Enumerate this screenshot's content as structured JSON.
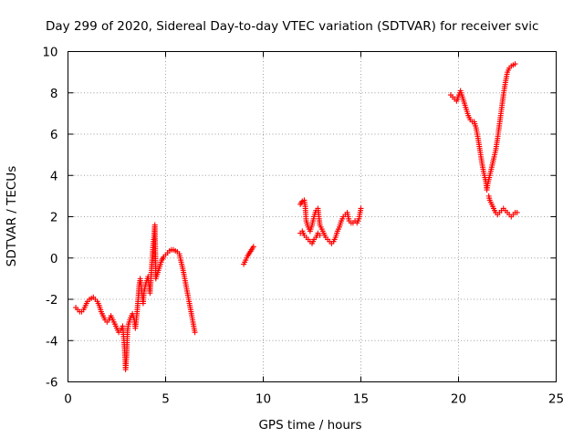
{
  "chart_data": {
    "type": "scatter",
    "title": "Day 299 of 2020, Sidereal Day-to-day VTEC variation (SDTVAR) for receiver svic",
    "xlabel": "GPS time / hours",
    "ylabel": "SDTVAR / TECUs",
    "xlim": [
      0,
      25
    ],
    "ylim": [
      -6,
      10
    ],
    "xticks": [
      0,
      5,
      10,
      15,
      20,
      25
    ],
    "yticks": [
      -6,
      -4,
      -2,
      0,
      2,
      4,
      6,
      8,
      10
    ],
    "grid": true,
    "marker": "plus",
    "color": "#ff0000",
    "segments": [
      [
        [
          0.4,
          -2.4
        ],
        [
          0.5,
          -2.5
        ],
        [
          0.6,
          -2.6
        ],
        [
          0.7,
          -2.6
        ],
        [
          0.8,
          -2.5
        ],
        [
          0.9,
          -2.3
        ],
        [
          1.0,
          -2.1
        ],
        [
          1.1,
          -2.0
        ],
        [
          1.2,
          -1.95
        ],
        [
          1.3,
          -1.9
        ],
        [
          1.4,
          -2.0
        ],
        [
          1.5,
          -2.1
        ],
        [
          1.6,
          -2.3
        ],
        [
          1.7,
          -2.6
        ],
        [
          1.8,
          -2.8
        ],
        [
          1.9,
          -3.0
        ],
        [
          2.0,
          -3.1
        ],
        [
          2.1,
          -3.0
        ],
        [
          2.2,
          -2.8
        ],
        [
          2.3,
          -3.0
        ],
        [
          2.4,
          -3.2
        ],
        [
          2.5,
          -3.4
        ],
        [
          2.6,
          -3.6
        ],
        [
          2.7,
          -3.5
        ],
        [
          2.8,
          -3.3
        ],
        [
          2.85,
          -3.8
        ],
        [
          2.9,
          -4.4
        ],
        [
          2.93,
          -5.0
        ],
        [
          2.95,
          -5.4
        ],
        [
          3.0,
          -4.8
        ],
        [
          3.05,
          -3.5
        ],
        [
          3.1,
          -3.2
        ],
        [
          3.2,
          -2.9
        ],
        [
          3.3,
          -2.7
        ],
        [
          3.4,
          -3.0
        ],
        [
          3.45,
          -3.4
        ],
        [
          3.5,
          -3.0
        ],
        [
          3.55,
          -2.5
        ],
        [
          3.6,
          -1.9
        ],
        [
          3.65,
          -1.3
        ],
        [
          3.7,
          -1.0
        ],
        [
          3.75,
          -1.4
        ],
        [
          3.8,
          -1.8
        ],
        [
          3.85,
          -2.2
        ],
        [
          3.9,
          -1.6
        ],
        [
          4.0,
          -1.2
        ],
        [
          4.1,
          -0.9
        ],
        [
          4.15,
          -1.3
        ],
        [
          4.2,
          -1.7
        ],
        [
          4.25,
          -1.0
        ],
        [
          4.3,
          -0.2
        ],
        [
          4.35,
          0.5
        ],
        [
          4.4,
          1.0
        ],
        [
          4.45,
          1.6
        ],
        [
          4.5,
          -1.0
        ],
        [
          4.6,
          -0.7
        ],
        [
          4.7,
          -0.4
        ],
        [
          4.8,
          -0.1
        ],
        [
          4.9,
          0.05
        ],
        [
          5.0,
          0.15
        ],
        [
          5.1,
          0.25
        ],
        [
          5.2,
          0.35
        ],
        [
          5.3,
          0.4
        ],
        [
          5.4,
          0.4
        ],
        [
          5.5,
          0.35
        ],
        [
          5.6,
          0.3
        ],
        [
          5.7,
          0.2
        ],
        [
          5.8,
          -0.2
        ],
        [
          5.9,
          -0.6
        ],
        [
          6.0,
          -1.1
        ],
        [
          6.1,
          -1.6
        ],
        [
          6.2,
          -2.1
        ],
        [
          6.3,
          -2.6
        ],
        [
          6.4,
          -3.1
        ],
        [
          6.5,
          -3.6
        ]
      ],
      [
        [
          9.0,
          -0.3
        ],
        [
          9.1,
          -0.1
        ],
        [
          9.2,
          0.1
        ],
        [
          9.3,
          0.25
        ],
        [
          9.4,
          0.4
        ],
        [
          9.5,
          0.55
        ]
      ],
      [
        [
          11.9,
          2.6
        ],
        [
          12.0,
          2.75
        ],
        [
          12.1,
          2.8
        ],
        [
          12.15,
          2.5
        ],
        [
          12.2,
          1.8
        ],
        [
          12.3,
          1.5
        ],
        [
          12.4,
          1.3
        ],
        [
          12.5,
          1.6
        ],
        [
          12.6,
          2.0
        ],
        [
          12.7,
          2.3
        ],
        [
          12.8,
          2.4
        ],
        [
          12.9,
          1.6
        ],
        [
          13.0,
          1.4
        ],
        [
          13.1,
          1.2
        ],
        [
          13.2,
          1.0
        ],
        [
          13.3,
          0.9
        ],
        [
          13.4,
          0.8
        ],
        [
          13.5,
          0.7
        ],
        [
          13.6,
          0.8
        ],
        [
          13.7,
          1.0
        ],
        [
          13.8,
          1.3
        ],
        [
          13.9,
          1.5
        ],
        [
          14.0,
          1.8
        ],
        [
          14.1,
          2.0
        ],
        [
          14.2,
          2.1
        ],
        [
          14.3,
          2.2
        ],
        [
          14.4,
          1.8
        ],
        [
          14.5,
          1.7
        ],
        [
          14.6,
          1.7
        ],
        [
          14.7,
          1.8
        ],
        [
          14.8,
          1.7
        ],
        [
          14.9,
          1.9
        ],
        [
          15.0,
          2.4
        ],
        [
          11.9,
          1.2
        ],
        [
          12.0,
          1.3
        ],
        [
          12.1,
          1.1
        ],
        [
          12.2,
          1.0
        ],
        [
          12.3,
          0.9
        ],
        [
          12.4,
          0.8
        ],
        [
          12.5,
          0.7
        ],
        [
          12.6,
          0.9
        ],
        [
          12.7,
          1.0
        ],
        [
          12.8,
          1.2
        ],
        [
          12.9,
          1.1
        ]
      ],
      [
        [
          19.6,
          7.9
        ],
        [
          19.7,
          7.8
        ],
        [
          19.8,
          7.7
        ],
        [
          19.9,
          7.6
        ],
        [
          20.1,
          8.1
        ],
        [
          20.2,
          7.8
        ],
        [
          20.3,
          7.5
        ],
        [
          20.4,
          7.2
        ],
        [
          20.5,
          6.9
        ],
        [
          20.6,
          6.7
        ],
        [
          20.7,
          6.6
        ],
        [
          20.8,
          6.6
        ],
        [
          20.9,
          6.3
        ],
        [
          21.0,
          5.8
        ],
        [
          21.1,
          5.2
        ],
        [
          21.2,
          4.6
        ],
        [
          21.3,
          4.1
        ],
        [
          21.4,
          3.7
        ],
        [
          21.45,
          3.3
        ],
        [
          21.5,
          3.6
        ],
        [
          21.6,
          4.0
        ],
        [
          21.7,
          4.4
        ],
        [
          21.8,
          4.8
        ],
        [
          21.9,
          5.2
        ],
        [
          22.0,
          5.8
        ],
        [
          22.1,
          6.5
        ],
        [
          22.2,
          7.2
        ],
        [
          22.3,
          7.9
        ],
        [
          22.4,
          8.5
        ],
        [
          22.5,
          9.0
        ],
        [
          22.6,
          9.2
        ],
        [
          22.7,
          9.3
        ],
        [
          22.8,
          9.35
        ],
        [
          22.9,
          9.4
        ],
        [
          21.55,
          3.0
        ],
        [
          21.6,
          2.8
        ],
        [
          21.7,
          2.6
        ],
        [
          21.8,
          2.4
        ],
        [
          21.9,
          2.2
        ],
        [
          22.0,
          2.1
        ],
        [
          22.1,
          2.2
        ],
        [
          22.2,
          2.3
        ],
        [
          22.3,
          2.4
        ],
        [
          22.4,
          2.3
        ],
        [
          22.5,
          2.2
        ],
        [
          22.6,
          2.1
        ],
        [
          22.7,
          2.0
        ],
        [
          22.8,
          2.1
        ],
        [
          22.9,
          2.2
        ],
        [
          23.0,
          2.2
        ]
      ]
    ]
  }
}
